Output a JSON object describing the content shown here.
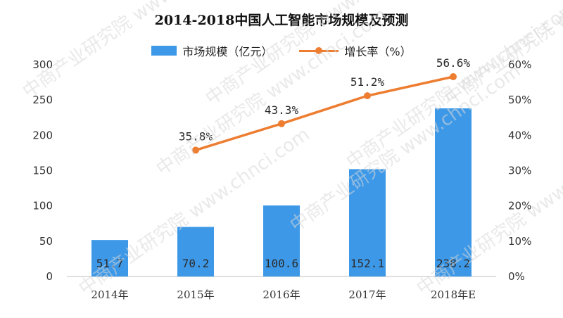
{
  "chart_data": {
    "type": "bar+line",
    "title": "2014-2018中国人工智能市场规模及预测",
    "categories": [
      "2014年",
      "2015年",
      "2016年",
      "2017年",
      "2018年E"
    ],
    "series": [
      {
        "name": "市场规模（亿元）",
        "type": "bar",
        "axis": "left",
        "values": [
          51.7,
          70.2,
          100.6,
          152.1,
          238.2
        ],
        "labels": [
          "51.7",
          "70.2",
          "100.6",
          "152.1",
          "238.2"
        ],
        "color": "#3d99e8"
      },
      {
        "name": "增长率（%）",
        "type": "line",
        "axis": "right",
        "values": [
          null,
          35.8,
          43.3,
          51.2,
          56.6
        ],
        "labels": [
          "",
          "35.8%",
          "43.3%",
          "51.2%",
          "56.6%"
        ],
        "color": "#ed7d31"
      }
    ],
    "y_left": {
      "ylim": [
        0,
        300
      ],
      "ticks": [
        "0",
        "50",
        "100",
        "150",
        "200",
        "250",
        "300"
      ]
    },
    "y_right": {
      "ylim": [
        0,
        60
      ],
      "ticks": [
        "0%",
        "10%",
        "20%",
        "30%",
        "40%",
        "50%",
        "60%"
      ]
    },
    "grid": false,
    "legend": "top"
  },
  "watermark": {
    "text": "中商产业研究院 www.chnci.com"
  }
}
